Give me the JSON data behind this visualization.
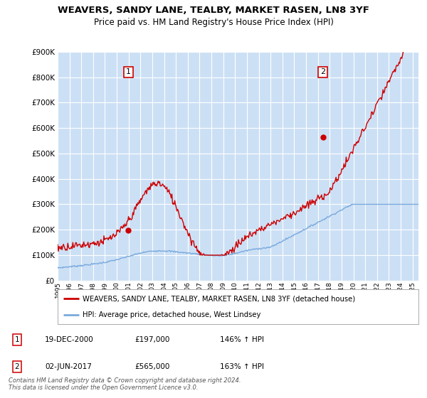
{
  "title": "WEAVERS, SANDY LANE, TEALBY, MARKET RASEN, LN8 3YF",
  "subtitle": "Price paid vs. HM Land Registry's House Price Index (HPI)",
  "background_color": "#ffffff",
  "plot_bg_color": "#cce0f5",
  "grid_color": "#ffffff",
  "hpi_line_color": "#7aaadd",
  "price_line_color": "#cc0000",
  "marker_color": "#cc0000",
  "sale1_x": 2000.97,
  "sale1_y": 197000,
  "sale2_x": 2017.42,
  "sale2_y": 565000,
  "legend_entries": [
    "WEAVERS, SANDY LANE, TEALBY, MARKET RASEN, LN8 3YF (detached house)",
    "HPI: Average price, detached house, West Lindsey"
  ],
  "table_rows": [
    [
      "1",
      "19-DEC-2000",
      "£197,000",
      "146% ↑ HPI"
    ],
    [
      "2",
      "02-JUN-2017",
      "£565,000",
      "163% ↑ HPI"
    ]
  ],
  "footnote": "Contains HM Land Registry data © Crown copyright and database right 2024.\nThis data is licensed under the Open Government Licence v3.0.",
  "xmin": 1995.0,
  "xmax": 2025.5,
  "ymin": 0,
  "ymax": 900000,
  "yticks": [
    0,
    100000,
    200000,
    300000,
    400000,
    500000,
    600000,
    700000,
    800000,
    900000
  ],
  "ytick_labels": [
    "£0",
    "£100K",
    "£200K",
    "£300K",
    "£400K",
    "£500K",
    "£600K",
    "£700K",
    "£800K",
    "£900K"
  ]
}
